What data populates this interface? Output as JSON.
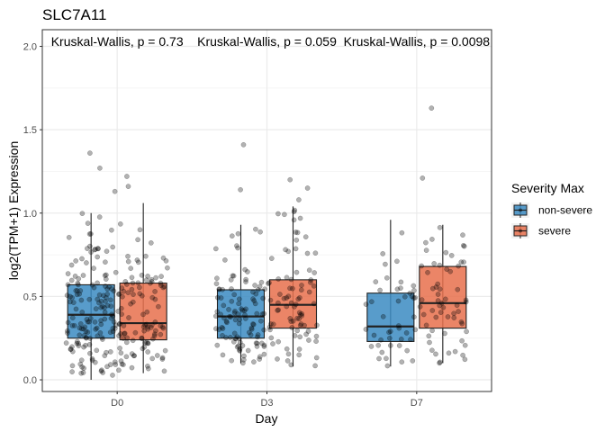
{
  "chart_data": {
    "type": "box",
    "title": "SLC7A11",
    "xlabel": "Day",
    "ylabel": "log2(TPM+1) Expression",
    "categories": [
      "D0",
      "D3",
      "D7"
    ],
    "ylim": [
      -0.07,
      2.1
    ],
    "yticks": [
      "0.0",
      "0.5",
      "1.0",
      "1.5",
      "2.0"
    ],
    "grid": true,
    "legend": {
      "title": "Severity Max",
      "position": "right",
      "items": [
        {
          "label": "non-severe",
          "color": "#3b8bc2"
        },
        {
          "label": "severe",
          "color": "#e8704c"
        }
      ]
    },
    "annotations": [
      {
        "category": "D0",
        "text": "Kruskal-Wallis, p = 0.73"
      },
      {
        "category": "D3",
        "text": "Kruskal-Wallis, p = 0.059"
      },
      {
        "category": "D7",
        "text": "Kruskal-Wallis, p = 0.0098"
      }
    ],
    "series": [
      {
        "name": "non-severe",
        "color": "#3b8bc2",
        "boxes": [
          {
            "category": "D0",
            "whisker_low": 0.0,
            "q1": 0.25,
            "median": 0.39,
            "q3": 0.57,
            "whisker_high": 1.0,
            "outliers": [
              1.13,
              1.27,
              1.36
            ],
            "n": 150
          },
          {
            "category": "D3",
            "whisker_low": 0.1,
            "q1": 0.25,
            "median": 0.38,
            "q3": 0.54,
            "whisker_high": 0.93,
            "outliers": [
              1.14,
              1.41
            ],
            "n": 110
          },
          {
            "category": "D7",
            "whisker_low": 0.08,
            "q1": 0.23,
            "median": 0.32,
            "q3": 0.52,
            "whisker_high": 0.96,
            "outliers": [],
            "n": 45
          }
        ]
      },
      {
        "name": "severe",
        "color": "#e8704c",
        "boxes": [
          {
            "category": "D0",
            "whisker_low": 0.04,
            "q1": 0.24,
            "median": 0.34,
            "q3": 0.58,
            "whisker_high": 1.06,
            "outliers": [
              1.16,
              1.22
            ],
            "n": 110
          },
          {
            "category": "D3",
            "whisker_low": 0.08,
            "q1": 0.31,
            "median": 0.45,
            "q3": 0.6,
            "whisker_high": 1.04,
            "outliers": [
              1.08,
              1.15,
              1.2
            ],
            "n": 85
          },
          {
            "category": "D7",
            "whisker_low": 0.1,
            "q1": 0.31,
            "median": 0.46,
            "q3": 0.68,
            "whisker_high": 0.93,
            "outliers": [
              1.21,
              1.63
            ],
            "n": 60
          }
        ]
      }
    ]
  }
}
